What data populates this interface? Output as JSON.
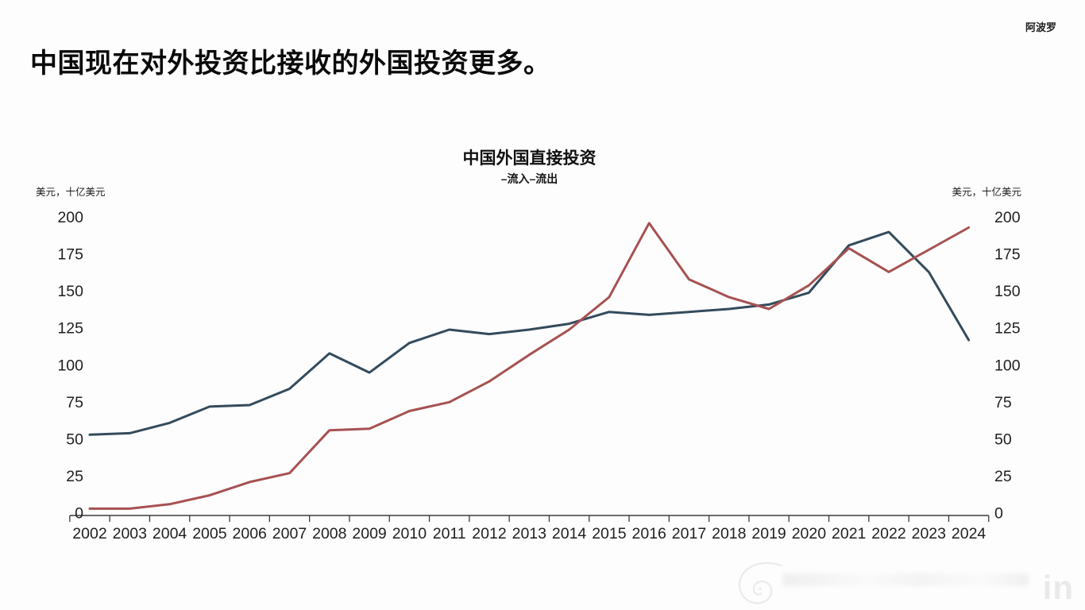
{
  "header": {
    "headline": "中国现在对外投资比接收的外国投资更多。",
    "brand": "阿波罗"
  },
  "chart_data": {
    "type": "line",
    "title": "中国外国直接投资",
    "legend_text": "–流入–流出",
    "legend_position": "top-center",
    "left_axis_unit": "美元，十亿美元",
    "right_axis_unit": "美元，十亿美元",
    "x": [
      2002,
      2003,
      2004,
      2005,
      2006,
      2007,
      2008,
      2009,
      2010,
      2011,
      2012,
      2013,
      2014,
      2015,
      2016,
      2017,
      2018,
      2019,
      2020,
      2021,
      2022,
      2023,
      2024
    ],
    "yticks": [
      0,
      25,
      50,
      75,
      100,
      125,
      150,
      175,
      200
    ],
    "ylim": [
      0,
      200
    ],
    "grid": false,
    "series": [
      {
        "name": "流入",
        "color": "#334b5c",
        "values": [
          53,
          54,
          61,
          72,
          73,
          84,
          108,
          95,
          115,
          124,
          121,
          124,
          128,
          136,
          134,
          136,
          138,
          141,
          149,
          181,
          190,
          163,
          117
        ]
      },
      {
        "name": "流出",
        "color": "#a65151",
        "values": [
          3,
          3,
          6,
          12,
          21,
          27,
          56,
          57,
          69,
          75,
          89,
          107,
          124,
          146,
          196,
          158,
          146,
          138,
          154,
          179,
          163,
          178,
          193
        ]
      }
    ],
    "axis_color": "#3c3c3c",
    "tick_label_color": "#1f1f1f"
  },
  "watermark": {
    "logo": "spiral-logo",
    "linkedin_label": "in"
  }
}
